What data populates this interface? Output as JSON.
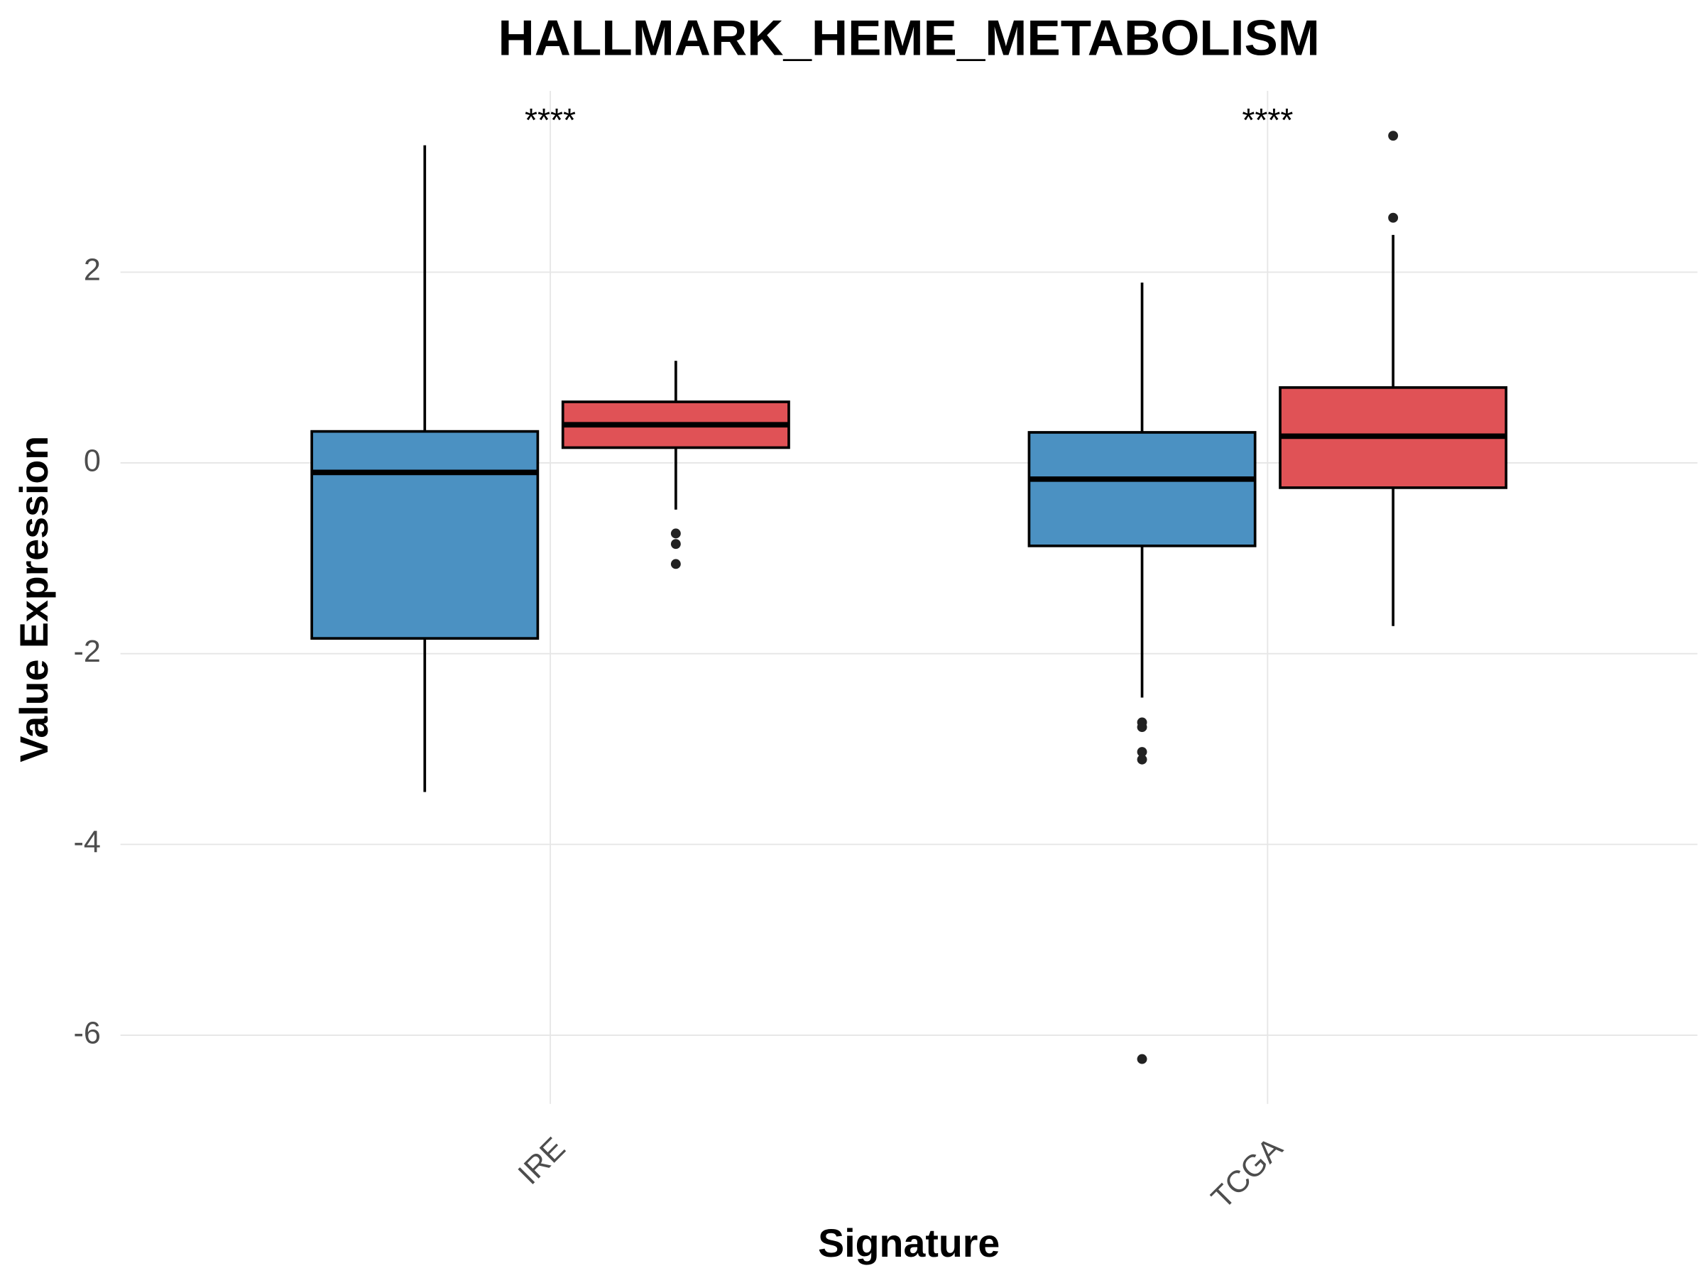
{
  "chart_data": {
    "type": "box",
    "title": "HALLMARK_HEME_METABOLISM",
    "x_label": "Signature",
    "y_label": "Value Expression",
    "categories": [
      "IRE",
      "TCGA"
    ],
    "annotations": [
      "****",
      "****"
    ],
    "ylim": [
      -6.72,
      3.9
    ],
    "yticks": [
      -6,
      -4,
      -2,
      0,
      2
    ],
    "grid": true,
    "series": [
      {
        "color": "#4b91c2",
        "boxes": [
          {
            "whislo": -3.45,
            "q1": -1.84,
            "med": -0.1,
            "q3": 0.33,
            "whishi": 3.33,
            "outliers": []
          },
          {
            "whislo": -2.46,
            "q1": -0.87,
            "med": -0.17,
            "q3": 0.32,
            "whishi": 1.89,
            "outliers": [
              -2.72,
              -2.77,
              -3.03,
              -3.11,
              -6.25
            ]
          }
        ]
      },
      {
        "color": "#e05256",
        "boxes": [
          {
            "whislo": -0.49,
            "q1": 0.16,
            "med": 0.4,
            "q3": 0.64,
            "whishi": 1.07,
            "outliers": [
              -0.74,
              -0.85,
              -1.06
            ]
          },
          {
            "whislo": -1.71,
            "q1": -0.26,
            "med": 0.28,
            "q3": 0.79,
            "whishi": 2.39,
            "outliers": [
              2.57,
              3.43
            ]
          }
        ]
      }
    ]
  }
}
